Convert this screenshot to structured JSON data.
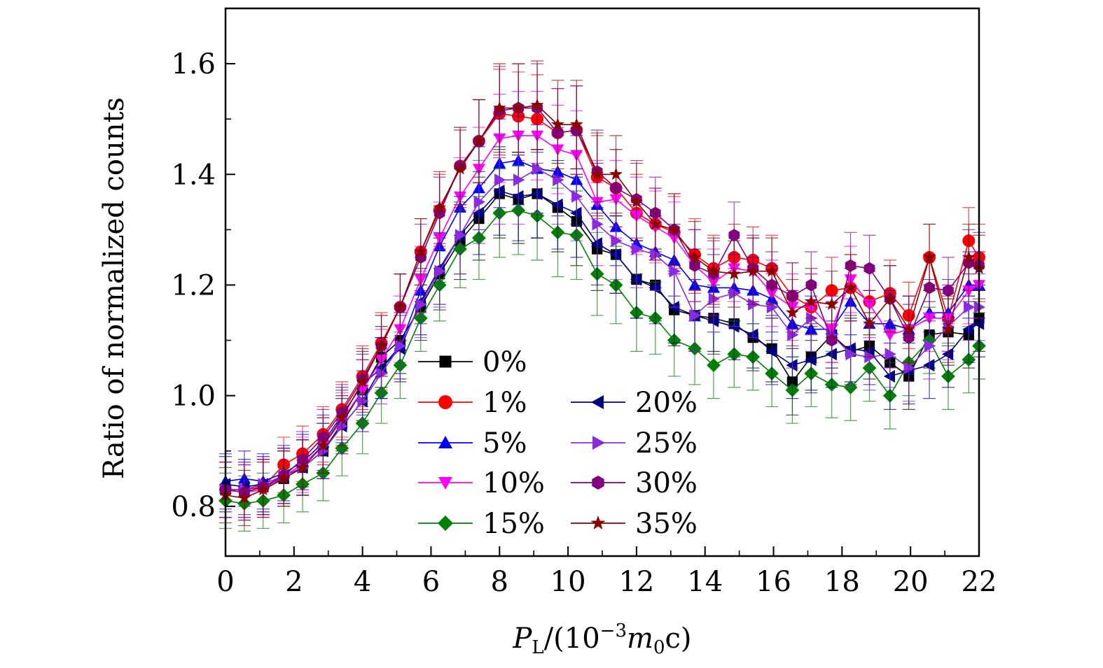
{
  "chart_data": {
    "type": "line",
    "xlabel_parts": {
      "p": "P",
      "sub": "L",
      "open": "/(10",
      "sup": "−3",
      "m": "m",
      "msub": "0",
      "close": "c)"
    },
    "ylabel": "Ratio of normalized counts",
    "xlim": [
      0,
      22
    ],
    "ylim": [
      0.71,
      1.7
    ],
    "xticks": [
      "0",
      "2",
      "4",
      "6",
      "8",
      "10",
      "12",
      "14",
      "16",
      "18",
      "20",
      "22"
    ],
    "xtick_values": [
      0,
      2,
      4,
      6,
      8,
      10,
      12,
      14,
      16,
      18,
      20,
      22
    ],
    "yticks": [
      "0.8",
      "1.0",
      "1.2",
      "1.4",
      "1.6"
    ],
    "ytick_values": [
      0.8,
      1.0,
      1.2,
      1.4,
      1.6
    ],
    "x": [
      0,
      0.55,
      1.1,
      1.7,
      2.25,
      2.85,
      3.4,
      4.0,
      4.55,
      5.1,
      5.7,
      6.25,
      6.85,
      7.4,
      8.0,
      8.55,
      9.1,
      9.7,
      10.25,
      10.85,
      11.4,
      12.0,
      12.55,
      13.1,
      13.7,
      14.25,
      14.85,
      15.4,
      15.95,
      16.55,
      17.1,
      17.7,
      18.25,
      18.8,
      19.4,
      19.95,
      20.55,
      21.1,
      21.7,
      22.0
    ],
    "series": [
      {
        "name": "0%",
        "color": "#000000",
        "marker": "square",
        "values": [
          0.83,
          0.83,
          0.835,
          0.85,
          0.87,
          0.9,
          0.95,
          1.01,
          1.07,
          1.1,
          1.16,
          1.22,
          1.28,
          1.32,
          1.365,
          1.355,
          1.365,
          1.34,
          1.315,
          1.265,
          1.255,
          1.21,
          1.2,
          1.155,
          1.145,
          1.14,
          1.13,
          1.105,
          1.085,
          1.025,
          1.07,
          1.11,
          1.08,
          1.09,
          1.06,
          1.035,
          1.11,
          1.115,
          1.11,
          1.14
        ]
      },
      {
        "name": "1%",
        "color": "#ff0000",
        "marker": "circle",
        "values": [
          0.83,
          0.83,
          0.835,
          0.875,
          0.895,
          0.93,
          0.975,
          1.035,
          1.095,
          1.16,
          1.26,
          1.335,
          1.415,
          1.46,
          1.51,
          1.505,
          1.5,
          1.475,
          1.48,
          1.395,
          1.375,
          1.33,
          1.31,
          1.295,
          1.255,
          1.23,
          1.25,
          1.245,
          1.23,
          1.18,
          1.16,
          1.19,
          1.195,
          1.17,
          1.185,
          1.145,
          1.25,
          1.14,
          1.28,
          1.25
        ]
      },
      {
        "name": "5%",
        "color": "#0000ff",
        "marker": "triangle-up",
        "values": [
          0.845,
          0.85,
          0.845,
          0.86,
          0.88,
          0.915,
          0.965,
          1.02,
          1.05,
          1.09,
          1.19,
          1.27,
          1.34,
          1.375,
          1.42,
          1.425,
          1.41,
          1.405,
          1.39,
          1.345,
          1.305,
          1.275,
          1.26,
          1.245,
          1.2,
          1.195,
          1.195,
          1.19,
          1.175,
          1.13,
          1.12,
          1.12,
          1.17,
          1.13,
          1.13,
          1.12,
          1.15,
          1.15,
          1.2,
          1.2
        ]
      },
      {
        "name": "10%",
        "color": "#ff00ff",
        "marker": "triangle-down",
        "values": [
          0.83,
          0.825,
          0.83,
          0.855,
          0.875,
          0.91,
          0.955,
          1.01,
          1.065,
          1.12,
          1.21,
          1.285,
          1.36,
          1.41,
          1.465,
          1.47,
          1.47,
          1.445,
          1.435,
          1.35,
          1.355,
          1.325,
          1.305,
          1.285,
          1.235,
          1.205,
          1.23,
          1.225,
          1.185,
          1.16,
          1.16,
          1.12,
          1.21,
          1.165,
          1.11,
          1.12,
          1.14,
          1.14,
          1.19,
          1.2
        ]
      },
      {
        "name": "15%",
        "color": "#008000",
        "marker": "diamond",
        "values": [
          0.81,
          0.805,
          0.81,
          0.82,
          0.84,
          0.86,
          0.905,
          0.95,
          1.005,
          1.055,
          1.14,
          1.2,
          1.265,
          1.285,
          1.33,
          1.335,
          1.325,
          1.295,
          1.29,
          1.22,
          1.2,
          1.15,
          1.14,
          1.1,
          1.085,
          1.055,
          1.075,
          1.07,
          1.04,
          1.01,
          1.04,
          1.02,
          1.015,
          1.05,
          1.0,
          1.06,
          1.1,
          1.035,
          1.065,
          1.09
        ]
      },
      {
        "name": "20%",
        "color": "#000080",
        "marker": "triangle-left",
        "values": [
          0.84,
          0.835,
          0.84,
          0.855,
          0.87,
          0.9,
          0.945,
          0.99,
          1.05,
          1.085,
          1.17,
          1.23,
          1.29,
          1.33,
          1.37,
          1.36,
          1.365,
          1.345,
          1.33,
          1.275,
          1.255,
          1.21,
          1.195,
          1.16,
          1.145,
          1.135,
          1.125,
          1.11,
          1.08,
          1.055,
          1.065,
          1.075,
          1.085,
          1.08,
          1.035,
          1.045,
          1.055,
          1.075,
          1.12,
          1.13
        ]
      },
      {
        "name": "25%",
        "color": "#8a2be2",
        "marker": "triangle-right",
        "values": [
          0.83,
          0.83,
          0.84,
          0.855,
          0.87,
          0.9,
          0.945,
          0.99,
          1.04,
          1.09,
          1.165,
          1.225,
          1.29,
          1.35,
          1.39,
          1.39,
          1.41,
          1.39,
          1.36,
          1.31,
          1.28,
          1.265,
          1.255,
          1.225,
          1.145,
          1.175,
          1.185,
          1.165,
          1.16,
          1.11,
          1.14,
          1.11,
          1.075,
          1.07,
          1.075,
          1.05,
          1.09,
          1.125,
          1.16,
          1.16
        ]
      },
      {
        "name": "30%",
        "color": "#800080",
        "marker": "hexagon",
        "values": [
          0.83,
          0.825,
          0.835,
          0.855,
          0.885,
          0.925,
          0.97,
          1.03,
          1.09,
          1.16,
          1.25,
          1.33,
          1.415,
          1.46,
          1.515,
          1.52,
          1.52,
          1.475,
          1.48,
          1.405,
          1.375,
          1.355,
          1.33,
          1.3,
          1.235,
          1.22,
          1.29,
          1.23,
          1.2,
          1.18,
          1.2,
          1.1,
          1.235,
          1.23,
          1.175,
          1.105,
          1.195,
          1.19,
          1.24,
          1.235
        ]
      },
      {
        "name": "35%",
        "color": "#8b0000",
        "marker": "star",
        "values": [
          0.82,
          0.815,
          0.83,
          0.85,
          0.87,
          0.91,
          0.96,
          1.025,
          1.09,
          1.16,
          1.26,
          1.34,
          1.41,
          1.46,
          1.52,
          1.52,
          1.525,
          1.49,
          1.49,
          1.4,
          1.4,
          1.35,
          1.31,
          1.3,
          1.25,
          1.225,
          1.22,
          1.225,
          1.225,
          1.15,
          1.17,
          1.165,
          1.195,
          1.13,
          1.175,
          1.12,
          1.25,
          1.12,
          1.25,
          1.23
        ]
      }
    ],
    "errors": [
      0.05,
      0.05,
      0.05,
      0.05,
      0.05,
      0.05,
      0.05,
      0.055,
      0.055,
      0.06,
      0.06,
      0.065,
      0.07,
      0.075,
      0.08,
      0.08,
      0.08,
      0.08,
      0.08,
      0.075,
      0.07,
      0.07,
      0.065,
      0.065,
      0.065,
      0.06,
      0.06,
      0.06,
      0.06,
      0.06,
      0.06,
      0.06,
      0.06,
      0.06,
      0.06,
      0.06,
      0.06,
      0.06,
      0.06,
      0.06
    ],
    "legend_placement": "center (two columns)"
  }
}
